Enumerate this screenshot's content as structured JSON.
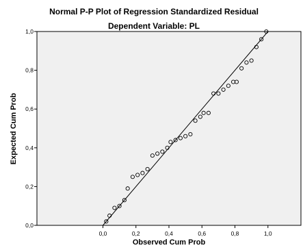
{
  "chart_data": {
    "type": "scatter",
    "title": "Normal P-P Plot of Regression Standardized Residual",
    "subtitle": "Dependent Variable: PL",
    "xlabel": "Observed Cum Prob",
    "ylabel": "Expected Cum Prob",
    "xlim": [
      -0.4,
      1.2
    ],
    "ylim": [
      0,
      1
    ],
    "xticks": [
      0.0,
      0.2,
      0.4,
      0.6,
      0.8,
      1.0
    ],
    "xtick_labels": [
      "0,0",
      "0,2",
      "0,4",
      "0,6",
      "0,8",
      "1,0"
    ],
    "yticks": [
      0.0,
      0.2,
      0.4,
      0.6,
      0.8,
      1.0
    ],
    "ytick_labels": [
      "0,0",
      "0,2",
      "0,4",
      "0,6",
      "0,8",
      "1,0"
    ],
    "reference_line": [
      [
        0,
        0
      ],
      [
        1,
        1
      ]
    ],
    "grid": false,
    "plot_background": "#f0f0f0",
    "marker": "open-circle",
    "points": [
      [
        0.02,
        0.02
      ],
      [
        0.04,
        0.05
      ],
      [
        0.07,
        0.09
      ],
      [
        0.1,
        0.1
      ],
      [
        0.13,
        0.13
      ],
      [
        0.15,
        0.19
      ],
      [
        0.18,
        0.25
      ],
      [
        0.21,
        0.26
      ],
      [
        0.24,
        0.27
      ],
      [
        0.27,
        0.29
      ],
      [
        0.3,
        0.36
      ],
      [
        0.33,
        0.37
      ],
      [
        0.36,
        0.38
      ],
      [
        0.39,
        0.4
      ],
      [
        0.41,
        0.43
      ],
      [
        0.44,
        0.44
      ],
      [
        0.47,
        0.45
      ],
      [
        0.5,
        0.46
      ],
      [
        0.53,
        0.47
      ],
      [
        0.56,
        0.54
      ],
      [
        0.59,
        0.56
      ],
      [
        0.61,
        0.58
      ],
      [
        0.64,
        0.58
      ],
      [
        0.67,
        0.68
      ],
      [
        0.7,
        0.68
      ],
      [
        0.73,
        0.7
      ],
      [
        0.76,
        0.72
      ],
      [
        0.79,
        0.74
      ],
      [
        0.81,
        0.74
      ],
      [
        0.84,
        0.81
      ],
      [
        0.87,
        0.84
      ],
      [
        0.9,
        0.85
      ],
      [
        0.93,
        0.92
      ],
      [
        0.96,
        0.96
      ],
      [
        0.99,
        1.0
      ]
    ]
  }
}
